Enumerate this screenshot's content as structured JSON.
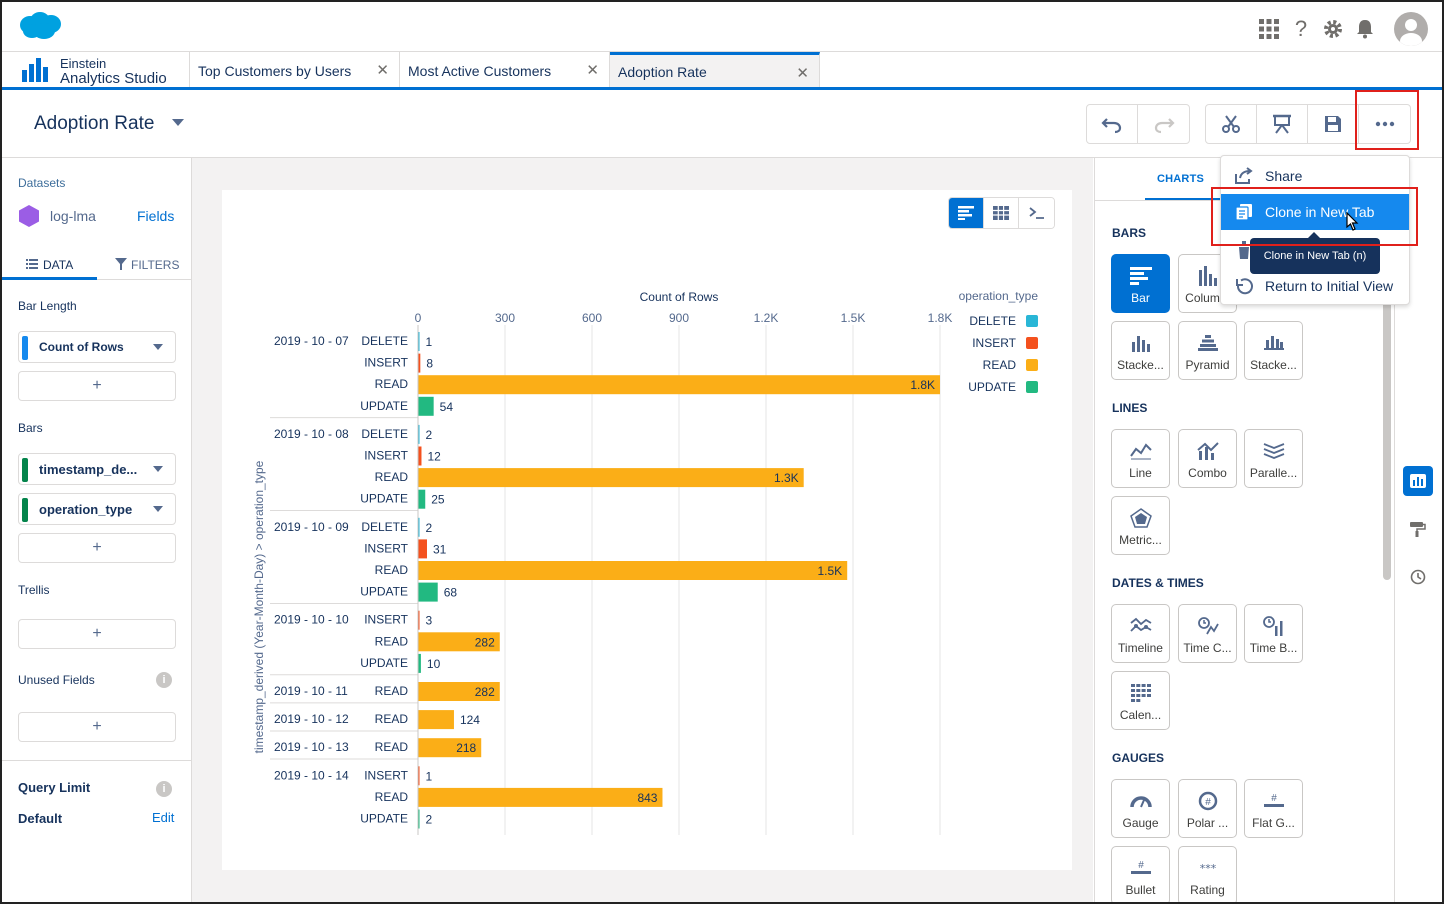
{
  "header": {
    "icons": [
      "app-launcher-icon",
      "help-icon",
      "settings-icon",
      "notifications-icon",
      "avatar"
    ]
  },
  "app": {
    "line1": "Einstein",
    "line2": "Analytics Studio"
  },
  "tabs": [
    {
      "label": "Top Customers by Users",
      "close": "✕"
    },
    {
      "label": "Most Active Customers",
      "close": "✕"
    },
    {
      "label": "Adoption Rate",
      "close": "✕",
      "active": true
    }
  ],
  "title": "Adoption Rate",
  "left": {
    "datasets_label": "Datasets",
    "dataset_name": "log-lma",
    "fields_link": "Fields",
    "tab_data": "DATA",
    "tab_filters": "FILTERS",
    "bar_length_label": "Bar Length",
    "bar_length_pill": "Count of Rows",
    "bars_label": "Bars",
    "bars_pills": [
      "timestamp_de...",
      "operation_type"
    ],
    "trellis_label": "Trellis",
    "unused_label": "Unused Fields",
    "query_limit_label": "Query Limit",
    "default_label": "Default",
    "edit_link": "Edit",
    "add": "+",
    "info": "i"
  },
  "right": {
    "tab_charts": "CHARTS",
    "sections": {
      "bars": "BARS",
      "lines": "LINES",
      "dates": "DATES & TIMES",
      "gauges": "GAUGES"
    },
    "bars_tiles": [
      "Bar",
      "Colum...",
      "Stacke...",
      "Pyramid",
      "Stacke..."
    ],
    "lines_tiles": [
      "Line",
      "Combo",
      "Paralle...",
      "Metric..."
    ],
    "dates_tiles": [
      "Timeline",
      "Time C...",
      "Time B...",
      "Calen..."
    ],
    "gauges_tiles": [
      "Gauge",
      "Polar ...",
      "Flat G...",
      "Bullet",
      "Rating"
    ]
  },
  "menu": {
    "share": "Share",
    "clone": "Clone in New Tab",
    "reset": "Return to Initial View",
    "tooltip": "Clone in New Tab (n)"
  },
  "colors": {
    "DELETE": "#29b6d6",
    "INSERT": "#f4511e",
    "READ": "#fbae17",
    "UPDATE": "#22b981",
    "accent": "#0070d2"
  },
  "chart_data": {
    "type": "bar",
    "orientation": "horizontal",
    "title": "",
    "xlabel": "Count of Rows",
    "ylabel": "timestamp_derived (Year-Month-Day) > operation_type",
    "xlim": [
      0,
      1800
    ],
    "x_ticks": [
      "0",
      "300",
      "600",
      "900",
      "1.2K",
      "1.5K",
      "1.8K"
    ],
    "legend_title": "operation_type",
    "legend": [
      "DELETE",
      "INSERT",
      "READ",
      "UPDATE"
    ],
    "groups": [
      {
        "date": "2019 - 10 - 07",
        "rows": [
          {
            "op": "DELETE",
            "value": 1,
            "label": "1"
          },
          {
            "op": "INSERT",
            "value": 8,
            "label": "8"
          },
          {
            "op": "READ",
            "value": 1800,
            "label": "1.8K"
          },
          {
            "op": "UPDATE",
            "value": 54,
            "label": "54"
          }
        ]
      },
      {
        "date": "2019 - 10 - 08",
        "rows": [
          {
            "op": "DELETE",
            "value": 2,
            "label": "2"
          },
          {
            "op": "INSERT",
            "value": 12,
            "label": "12"
          },
          {
            "op": "READ",
            "value": 1330,
            "label": "1.3K"
          },
          {
            "op": "UPDATE",
            "value": 25,
            "label": "25"
          }
        ]
      },
      {
        "date": "2019 - 10 - 09",
        "rows": [
          {
            "op": "DELETE",
            "value": 2,
            "label": "2"
          },
          {
            "op": "INSERT",
            "value": 31,
            "label": "31"
          },
          {
            "op": "READ",
            "value": 1480,
            "label": "1.5K"
          },
          {
            "op": "UPDATE",
            "value": 68,
            "label": "68"
          }
        ]
      },
      {
        "date": "2019 - 10 - 10",
        "rows": [
          {
            "op": "INSERT",
            "value": 3,
            "label": "3"
          },
          {
            "op": "READ",
            "value": 282,
            "label": "282"
          },
          {
            "op": "UPDATE",
            "value": 10,
            "label": "10"
          }
        ]
      },
      {
        "date": "2019 - 10 - 11",
        "rows": [
          {
            "op": "READ",
            "value": 282,
            "label": "282"
          }
        ]
      },
      {
        "date": "2019 - 10 - 12",
        "rows": [
          {
            "op": "READ",
            "value": 124,
            "label": "124"
          }
        ]
      },
      {
        "date": "2019 - 10 - 13",
        "rows": [
          {
            "op": "READ",
            "value": 218,
            "label": "218"
          }
        ]
      },
      {
        "date": "2019 - 10 - 14",
        "rows": [
          {
            "op": "INSERT",
            "value": 1,
            "label": "1"
          },
          {
            "op": "READ",
            "value": 843,
            "label": "843"
          },
          {
            "op": "UPDATE",
            "value": 2,
            "label": "2"
          }
        ]
      }
    ]
  }
}
